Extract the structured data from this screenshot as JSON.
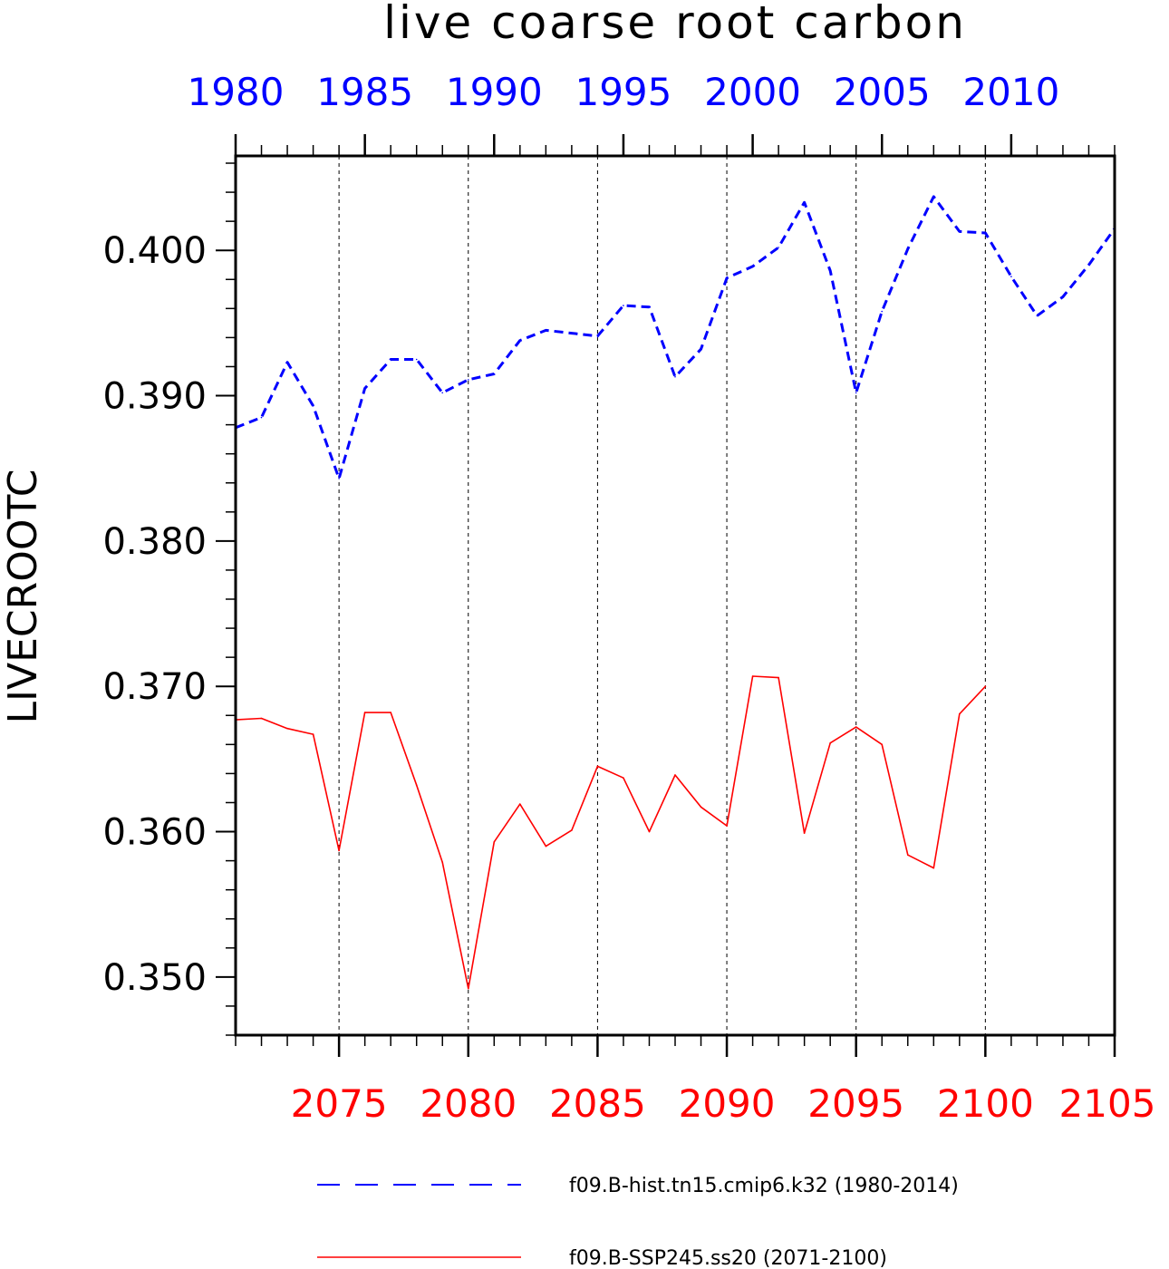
{
  "chart_data": {
    "type": "line",
    "title": "live coarse root carbon",
    "ylabel": "LIVECROOTC",
    "ylim": [
      0.346,
      0.4065
    ],
    "yticks": [
      "0.350",
      "0.360",
      "0.370",
      "0.380",
      "0.390",
      "0.400"
    ],
    "top_axis": {
      "xlim": [
        1980,
        2014
      ],
      "ticks": [
        "1980",
        "1985",
        "1990",
        "1995",
        "2000",
        "2005",
        "2010"
      ],
      "color": "#0000ff"
    },
    "bottom_axis": {
      "xlim": [
        2071,
        2105
      ],
      "ticks": [
        "2075",
        "2080",
        "2085",
        "2090",
        "2095",
        "2100",
        "2105"
      ],
      "color": "#ff0000"
    },
    "grid": "vertical dashed at bottom-axis major ticks",
    "legend_position": "below-plot",
    "series": [
      {
        "name": "f09.B-hist.tn15.cmip6.k32 (1980-2014)",
        "axis": "top",
        "color": "#0000ff",
        "style": "dashed",
        "x": [
          1980,
          1981,
          1982,
          1983,
          1984,
          1985,
          1986,
          1987,
          1988,
          1989,
          1990,
          1991,
          1992,
          1993,
          1994,
          1995,
          1996,
          1997,
          1998,
          1999,
          2000,
          2001,
          2002,
          2003,
          2004,
          2005,
          2006,
          2007,
          2008,
          2009,
          2010,
          2011,
          2012,
          2013,
          2014
        ],
        "values": [
          0.3878,
          0.3885,
          0.3923,
          0.3893,
          0.3843,
          0.3905,
          0.3925,
          0.3925,
          0.3902,
          0.3911,
          0.3915,
          0.3938,
          0.3945,
          0.3943,
          0.3941,
          0.3962,
          0.3961,
          0.3913,
          0.3932,
          0.3981,
          0.3989,
          0.4002,
          0.4033,
          0.3986,
          0.3902,
          0.3958,
          0.4001,
          0.4037,
          0.4013,
          0.4012,
          0.3982,
          0.3955,
          0.3968,
          0.399,
          0.4015
        ]
      },
      {
        "name": "f09.B-SSP245.ss20 (2071-2100)",
        "axis": "bottom",
        "color": "#ff0000",
        "style": "solid",
        "x": [
          2071,
          2072,
          2073,
          2074,
          2075,
          2076,
          2077,
          2078,
          2079,
          2080,
          2081,
          2082,
          2083,
          2084,
          2085,
          2086,
          2087,
          2088,
          2089,
          2090,
          2091,
          2092,
          2093,
          2094,
          2095,
          2096,
          2097,
          2098,
          2099,
          2100
        ],
        "values": [
          0.3677,
          0.3678,
          0.3671,
          0.3667,
          0.3587,
          0.3682,
          0.3682,
          0.3632,
          0.3579,
          0.3492,
          0.3593,
          0.3619,
          0.359,
          0.3601,
          0.3645,
          0.3637,
          0.36,
          0.3639,
          0.3617,
          0.3604,
          0.3707,
          0.3706,
          0.3599,
          0.3661,
          0.3672,
          0.366,
          0.3584,
          0.3575,
          0.3681,
          0.37
        ]
      }
    ]
  }
}
